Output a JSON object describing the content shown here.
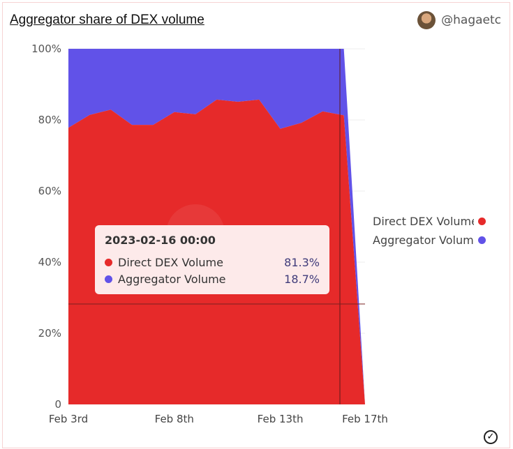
{
  "header": {
    "title": "Aggregator share of DEX volume",
    "user": "@hagaetc"
  },
  "tooltip": {
    "date": "2023-02-16 00:00",
    "rows": [
      {
        "label": "Direct DEX Volume",
        "value": "81.3%"
      },
      {
        "label": "Aggregator Volume",
        "value": "18.7%"
      }
    ]
  },
  "colors": {
    "direct": "#e62a2a",
    "aggregator": "#6152e8"
  },
  "chart_data": {
    "type": "area",
    "stacked": "percent",
    "title": "Aggregator share of DEX volume",
    "x": [
      "Feb 3",
      "Feb 4",
      "Feb 5",
      "Feb 6",
      "Feb 7",
      "Feb 8",
      "Feb 9",
      "Feb 10",
      "Feb 11",
      "Feb 12",
      "Feb 13",
      "Feb 14",
      "Feb 15",
      "Feb 16",
      "Feb 17"
    ],
    "x_tick_labels": [
      "Feb 3rd",
      "Feb 8th",
      "Feb 13th",
      "Feb 17th"
    ],
    "x_tick_index": [
      0,
      5,
      10,
      14
    ],
    "y_tick_labels": [
      "0",
      "20%",
      "40%",
      "60%",
      "80%",
      "100%"
    ],
    "y_ticks": [
      0,
      20,
      40,
      60,
      80,
      100
    ],
    "ylim": [
      0,
      100
    ],
    "legend_position": "right",
    "series": [
      {
        "name": "Direct DEX Volume",
        "values": [
          77.8,
          81.4,
          82.9,
          78.6,
          78.6,
          82.2,
          81.6,
          85.7,
          85.1,
          85.7,
          77.5,
          79.2,
          82.4,
          81.3,
          0
        ]
      },
      {
        "name": "Aggregator Volume",
        "values": [
          22.2,
          18.6,
          17.1,
          21.4,
          21.4,
          17.8,
          18.4,
          14.3,
          14.9,
          14.3,
          22.5,
          20.8,
          17.6,
          18.7,
          0
        ]
      }
    ]
  }
}
